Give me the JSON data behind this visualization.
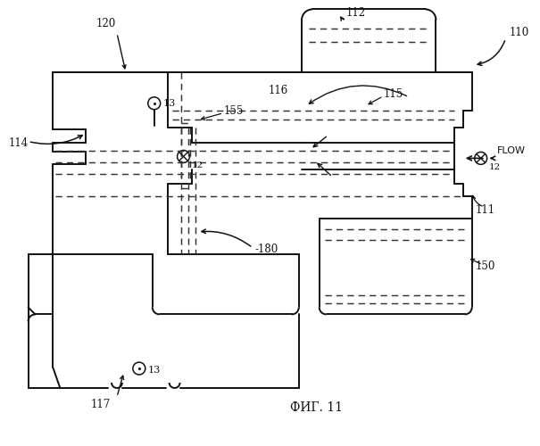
{
  "bg": "#ffffff",
  "lc": "#111111",
  "dc": "#333333",
  "lw": 1.4,
  "dw": 1.1,
  "fig_w": 6.05,
  "fig_h": 5.0,
  "dpi": 100
}
